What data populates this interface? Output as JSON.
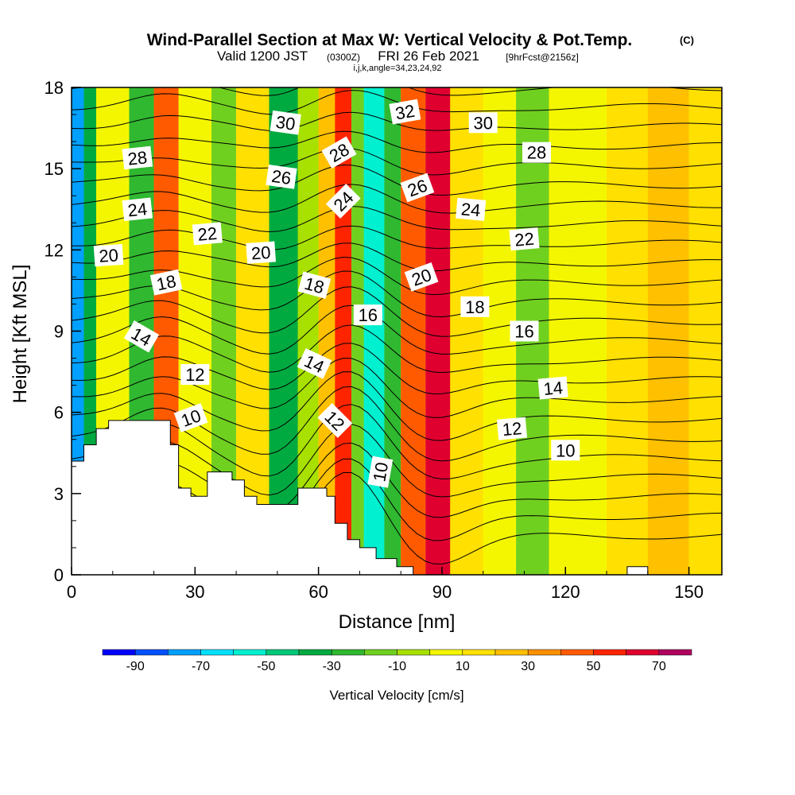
{
  "chart_data": {
    "type": "heatmap",
    "title": "Wind-Parallel Section at Max W: Vertical Velocity & Pot.Temp.",
    "title_mark": "(C)",
    "subtitle": {
      "valid_prefix": "Valid 1200 JST",
      "utc": "(0300Z)",
      "date": "FRI 26 Feb 2021",
      "forecast": "[9hrFcst@2156z]"
    },
    "grid_info": "i,j,k,angle=34,23,24,92",
    "xlabel": "Distance [nm]",
    "ylabel": "Height [Kft MSL]",
    "xlim": [
      0,
      158
    ],
    "ylim": [
      0,
      18
    ],
    "x_ticks": [
      0,
      30,
      60,
      90,
      120,
      150
    ],
    "y_ticks": [
      0,
      3,
      6,
      9,
      12,
      15,
      18
    ],
    "colorbar": {
      "label": "Vertical Velocity [cm/s]",
      "boundaries": [
        -100,
        -90,
        -80,
        -70,
        -60,
        -50,
        -40,
        -30,
        -20,
        -10,
        0,
        10,
        20,
        30,
        40,
        50,
        60,
        70,
        80
      ],
      "tick_labels": [
        "-90",
        "-70",
        "-50",
        "-30",
        "-10",
        "10",
        "30",
        "50",
        "70"
      ],
      "colors": [
        "#0000ff",
        "#0050ff",
        "#00a0ff",
        "#00e0ff",
        "#00f0d0",
        "#00c878",
        "#00aa40",
        "#30b830",
        "#70d020",
        "#a8e000",
        "#f4f600",
        "#ffe000",
        "#ffc000",
        "#ff9000",
        "#ff5a00",
        "#ff2400",
        "#e00030",
        "#b00060",
        "#780090"
      ]
    },
    "bands": [
      {
        "x": [
          0,
          3
        ],
        "w": -80
      },
      {
        "x": [
          3,
          6
        ],
        "w": -40
      },
      {
        "x": [
          6,
          14
        ],
        "w": 0
      },
      {
        "x": [
          14,
          20
        ],
        "w": -25
      },
      {
        "x": [
          20,
          26
        ],
        "w": 45
      },
      {
        "x": [
          26,
          34
        ],
        "w": 5
      },
      {
        "x": [
          34,
          40
        ],
        "w": -15
      },
      {
        "x": [
          40,
          48
        ],
        "w": 10
      },
      {
        "x": [
          48,
          55
        ],
        "w": -35
      },
      {
        "x": [
          55,
          60
        ],
        "w": -10
      },
      {
        "x": [
          60,
          64
        ],
        "w": 25
      },
      {
        "x": [
          64,
          68
        ],
        "w": 55
      },
      {
        "x": [
          68,
          71
        ],
        "w": -20
      },
      {
        "x": [
          71,
          76
        ],
        "w": -60
      },
      {
        "x": [
          76,
          80
        ],
        "w": -30
      },
      {
        "x": [
          80,
          86
        ],
        "w": 45
      },
      {
        "x": [
          86,
          92
        ],
        "w": 65
      },
      {
        "x": [
          92,
          100
        ],
        "w": 15
      },
      {
        "x": [
          100,
          108
        ],
        "w": 5
      },
      {
        "x": [
          108,
          116
        ],
        "w": -15
      },
      {
        "x": [
          116,
          130
        ],
        "w": 5
      },
      {
        "x": [
          130,
          140
        ],
        "w": 15
      },
      {
        "x": [
          140,
          150
        ],
        "w": 20
      },
      {
        "x": [
          150,
          158
        ],
        "w": 10
      }
    ],
    "terrain": [
      [
        0,
        4.2
      ],
      [
        3,
        4.2
      ],
      [
        3,
        4.8
      ],
      [
        6,
        4.8
      ],
      [
        6,
        5.4
      ],
      [
        9,
        5.4
      ],
      [
        9,
        5.7
      ],
      [
        24,
        5.7
      ],
      [
        24,
        4.8
      ],
      [
        26,
        4.8
      ],
      [
        26,
        3.2
      ],
      [
        29,
        3.2
      ],
      [
        29,
        2.9
      ],
      [
        33,
        2.9
      ],
      [
        33,
        3.8
      ],
      [
        39,
        3.8
      ],
      [
        39,
        3.5
      ],
      [
        42,
        3.5
      ],
      [
        42,
        2.9
      ],
      [
        45,
        2.9
      ],
      [
        45,
        2.6
      ],
      [
        55,
        2.6
      ],
      [
        55,
        3.2
      ],
      [
        62,
        3.2
      ],
      [
        62,
        2.9
      ],
      [
        64,
        2.9
      ],
      [
        64,
        1.9
      ],
      [
        67,
        1.9
      ],
      [
        67,
        1.3
      ],
      [
        70,
        1.3
      ],
      [
        70,
        1.0
      ],
      [
        74,
        1.0
      ],
      [
        74,
        0.6
      ],
      [
        79,
        0.6
      ],
      [
        79,
        0.3
      ],
      [
        83,
        0.3
      ],
      [
        83,
        0
      ],
      [
        135,
        0
      ],
      [
        135,
        0.3
      ],
      [
        140,
        0.3
      ],
      [
        140,
        0
      ],
      [
        158,
        0
      ]
    ],
    "isentropes": {
      "interval": 1,
      "min": 8,
      "max": 33
    },
    "contour_labels": [
      {
        "x": 16,
        "y": 15.4,
        "text": "28",
        "angle": -6
      },
      {
        "x": 16,
        "y": 13.5,
        "text": "24",
        "angle": -6
      },
      {
        "x": 9,
        "y": 11.8,
        "text": "20",
        "angle": -4
      },
      {
        "x": 23,
        "y": 10.8,
        "text": "18",
        "angle": -12
      },
      {
        "x": 17,
        "y": 8.8,
        "text": "14",
        "angle": 30
      },
      {
        "x": 30,
        "y": 7.4,
        "text": "12",
        "angle": 0
      },
      {
        "x": 29,
        "y": 5.8,
        "text": "10",
        "angle": -20
      },
      {
        "x": 33,
        "y": 12.6,
        "text": "22",
        "angle": -5
      },
      {
        "x": 52,
        "y": 16.7,
        "text": "30",
        "angle": 8
      },
      {
        "x": 51,
        "y": 14.7,
        "text": "26",
        "angle": 8
      },
      {
        "x": 46,
        "y": 11.9,
        "text": "20",
        "angle": -4
      },
      {
        "x": 59,
        "y": 10.7,
        "text": "18",
        "angle": 15
      },
      {
        "x": 59,
        "y": 7.8,
        "text": "14",
        "angle": 25
      },
      {
        "x": 64,
        "y": 5.7,
        "text": "12",
        "angle": 45
      },
      {
        "x": 65,
        "y": 15.6,
        "text": "28",
        "angle": -30
      },
      {
        "x": 66,
        "y": 13.8,
        "text": "24",
        "angle": -45
      },
      {
        "x": 72,
        "y": 9.6,
        "text": "16",
        "angle": 0
      },
      {
        "x": 75,
        "y": 3.8,
        "text": "10",
        "angle": -80
      },
      {
        "x": 81,
        "y": 17.1,
        "text": "32",
        "angle": -10
      },
      {
        "x": 84,
        "y": 14.3,
        "text": "26",
        "angle": -20
      },
      {
        "x": 85,
        "y": 11.0,
        "text": "20",
        "angle": -20
      },
      {
        "x": 100,
        "y": 16.7,
        "text": "30",
        "angle": 0
      },
      {
        "x": 97,
        "y": 13.5,
        "text": "24",
        "angle": 5
      },
      {
        "x": 98,
        "y": 9.9,
        "text": "18",
        "angle": 0
      },
      {
        "x": 113,
        "y": 15.6,
        "text": "28",
        "angle": 0
      },
      {
        "x": 110,
        "y": 12.4,
        "text": "22",
        "angle": -5
      },
      {
        "x": 110,
        "y": 9.0,
        "text": "16",
        "angle": 0
      },
      {
        "x": 117,
        "y": 6.9,
        "text": "14",
        "angle": -5
      },
      {
        "x": 107,
        "y": 5.4,
        "text": "12",
        "angle": -5
      },
      {
        "x": 120,
        "y": 4.6,
        "text": "10",
        "angle": 0
      }
    ]
  }
}
